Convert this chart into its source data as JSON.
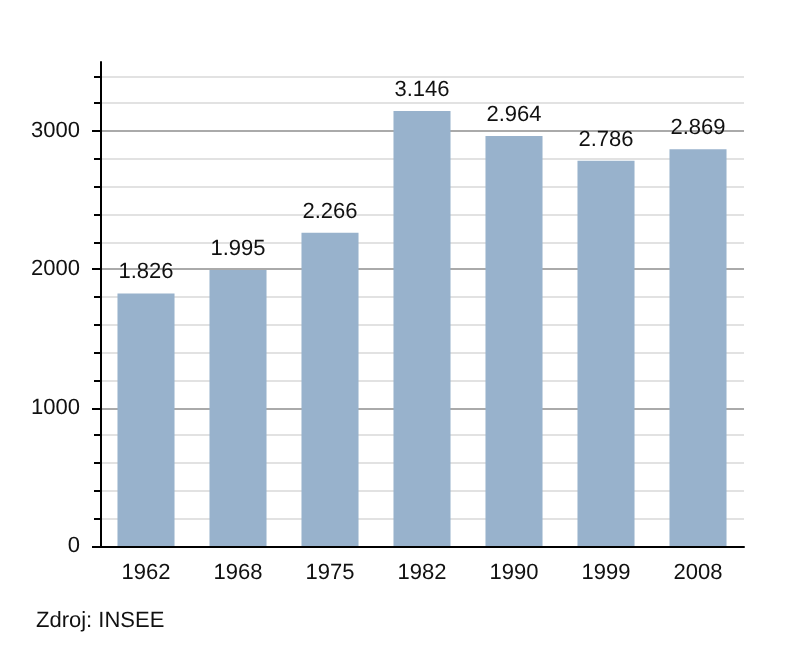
{
  "chart_data": {
    "type": "bar",
    "categories": [
      "1962",
      "1968",
      "1975",
      "1982",
      "1990",
      "1999",
      "2008"
    ],
    "values": [
      1826,
      1995,
      2266,
      3146,
      2964,
      2786,
      2869
    ],
    "value_labels": [
      "1.826",
      "1.995",
      "2.266",
      "3.146",
      "2.964",
      "2.786",
      "2.869"
    ],
    "color": "#98b2cc",
    "ylim": [
      0,
      3500
    ],
    "yticks": [
      0,
      1000,
      2000,
      3000
    ],
    "grid": "y",
    "annotations": [
      "Zdroj: INSEE"
    ]
  }
}
